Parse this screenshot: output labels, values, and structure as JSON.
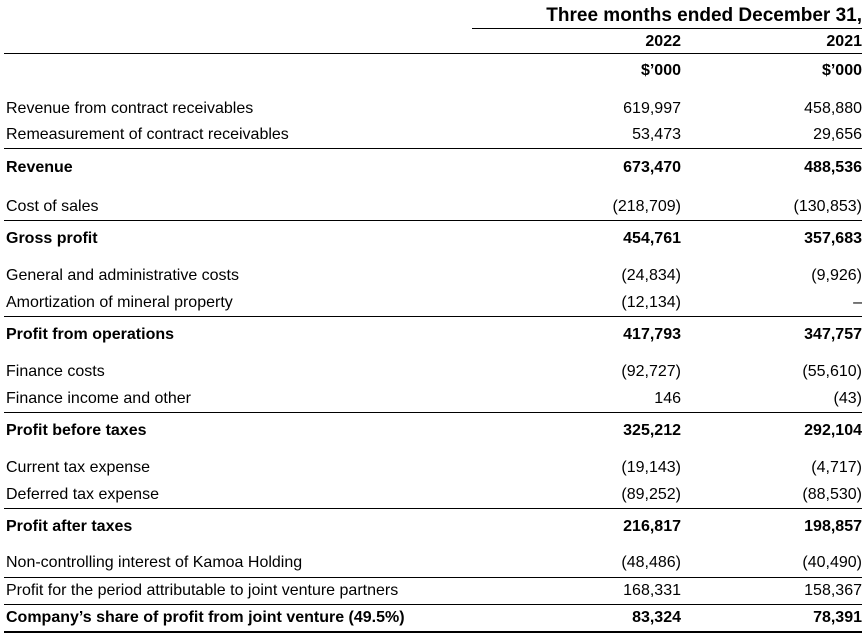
{
  "header": {
    "period": "Three months ended December 31,",
    "year1": "2022",
    "year2": "2021",
    "unit1": "$’000",
    "unit2": "$’000"
  },
  "rows": [
    {
      "label": "Revenue from contract receivables",
      "v1": "619,997",
      "v2": "458,880",
      "bold": false
    },
    {
      "label": "Remeasurement of contract receivables",
      "v1": "53,473",
      "v2": "29,656",
      "bold": false
    },
    {
      "label": "Revenue",
      "v1": "673,470",
      "v2": "488,536",
      "bold": true
    },
    {
      "label": "Cost of sales",
      "v1": "(218,709)",
      "v2": "(130,853)",
      "bold": false
    },
    {
      "label": "Gross profit",
      "v1": "454,761",
      "v2": "357,683",
      "bold": true
    },
    {
      "label": "General and administrative costs",
      "v1": "(24,834)",
      "v2": "(9,926)",
      "bold": false
    },
    {
      "label": "Amortization of mineral property",
      "v1": "(12,134)",
      "v2": "–",
      "bold": false
    },
    {
      "label": "Profit from operations",
      "v1": "417,793",
      "v2": "347,757",
      "bold": true
    },
    {
      "label": "Finance costs",
      "v1": "(92,727)",
      "v2": "(55,610)",
      "bold": false
    },
    {
      "label": "Finance income and other",
      "v1": "146",
      "v2": "(43)",
      "bold": false
    },
    {
      "label": "Profit before taxes",
      "v1": "325,212",
      "v2": "292,104",
      "bold": true
    },
    {
      "label": "Current tax expense",
      "v1": "(19,143)",
      "v2": "(4,717)",
      "bold": false
    },
    {
      "label": "Deferred tax expense",
      "v1": "(89,252)",
      "v2": "(88,530)",
      "bold": false
    },
    {
      "label": "Profit after taxes",
      "v1": "216,817",
      "v2": "198,857",
      "bold": true
    },
    {
      "label": "Non-controlling interest of Kamoa Holding",
      "v1": "(48,486)",
      "v2": "(40,490)",
      "bold": false
    },
    {
      "label": "Profit for the period attributable to joint venture partners",
      "v1": "168,331",
      "v2": "158,367",
      "bold": false
    },
    {
      "label": "Company’s share of profit from joint venture (49.5%)",
      "v1": "83,324",
      "v2": "78,391",
      "bold": true
    }
  ]
}
